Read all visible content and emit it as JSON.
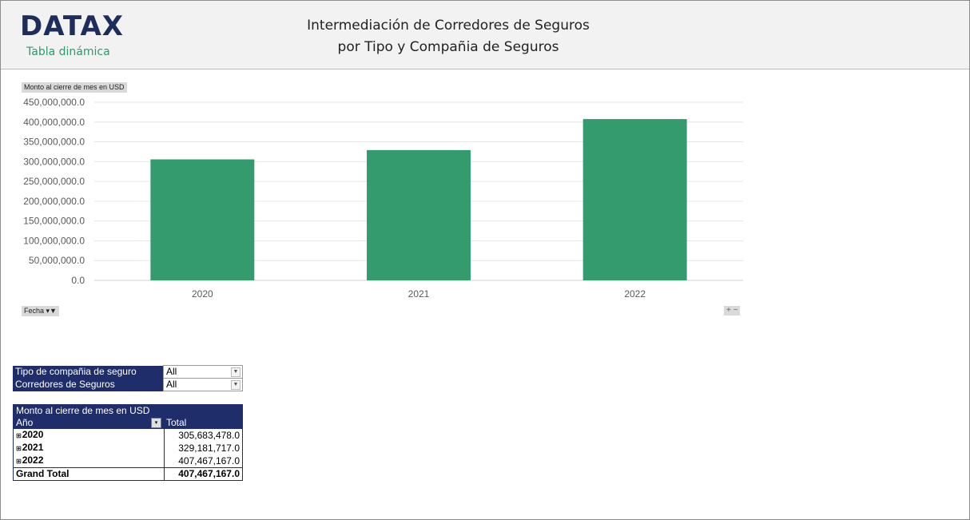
{
  "header": {
    "logo": "DATAX",
    "logo_sub": "Tabla dinámica",
    "title_line1": "Intermediación de Corredores de Seguros",
    "title_line2": "por Tipo y Compañia de Seguros"
  },
  "chart_labels": {
    "value_field": "Monto al cierre de mes en USD",
    "axis_field": "Fecha",
    "zoom": "+ −"
  },
  "chart_data": {
    "type": "bar",
    "categories": [
      "2020",
      "2021",
      "2022"
    ],
    "values": [
      305683478.0,
      329181717.0,
      407467167.0
    ],
    "title": "",
    "xlabel": "",
    "ylabel": "",
    "ylim": [
      0,
      450000000
    ],
    "yticks": [
      0,
      50000000,
      100000000,
      150000000,
      200000000,
      250000000,
      300000000,
      350000000,
      400000000,
      450000000
    ],
    "ytick_labels": [
      "0.0",
      "50,000,000.0",
      "100,000,000.0",
      "150,000,000.0",
      "200,000,000.0",
      "250,000,000.0",
      "300,000,000.0",
      "350,000,000.0",
      "400,000,000.0",
      "450,000,000.0"
    ],
    "grid": true,
    "bar_color": "#339b6e"
  },
  "filters": [
    {
      "label": "Tipo de compañia de seguro",
      "value": "All"
    },
    {
      "label": "Corredores de Seguros",
      "value": "All"
    }
  ],
  "pivot": {
    "value_header": "Monto al cierre de mes en USD",
    "row_header": "Año",
    "col_header": "Total",
    "rows": [
      {
        "label": "2020",
        "value": "305,683,478.0"
      },
      {
        "label": "2021",
        "value": "329,181,717.0"
      },
      {
        "label": "2022",
        "value": "407,467,167.0"
      }
    ],
    "grand_total_label": "Grand Total",
    "grand_total_value": "407,467,167.0"
  }
}
